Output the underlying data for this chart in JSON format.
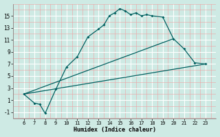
{
  "xlabel": "Humidex (Indice chaleur)",
  "bg_color": "#ceeae4",
  "line_color": "#006060",
  "grid_major_color": "#ffffff",
  "grid_minor_color": "#f0a0a0",
  "xlim": [
    5.0,
    24.0
  ],
  "ylim": [
    -2.0,
    17.0
  ],
  "xticks": [
    6,
    7,
    8,
    9,
    10,
    11,
    12,
    13,
    14,
    15,
    16,
    17,
    18,
    19,
    20,
    21,
    22,
    23
  ],
  "yticks": [
    -1,
    1,
    3,
    5,
    7,
    9,
    11,
    13,
    15
  ],
  "main_curve_x": [
    6,
    7,
    7.5,
    8,
    9,
    10,
    11,
    12,
    13,
    13.5,
    14,
    14.5,
    15,
    15.5,
    16,
    16.5,
    17,
    17.5,
    18,
    19,
    20,
    21,
    22,
    23
  ],
  "main_curve_y": [
    2.0,
    0.5,
    0.3,
    -1.2,
    2.8,
    6.5,
    8.2,
    11.5,
    12.8,
    13.5,
    15.0,
    15.5,
    16.2,
    15.8,
    15.2,
    15.5,
    15.0,
    15.2,
    15.0,
    14.8,
    11.2,
    9.5,
    7.2,
    7.0
  ],
  "line1_x": [
    6,
    20
  ],
  "line1_y": [
    2.0,
    11.2
  ],
  "line2_x": [
    6,
    23
  ],
  "line2_y": [
    2.0,
    7.0
  ]
}
